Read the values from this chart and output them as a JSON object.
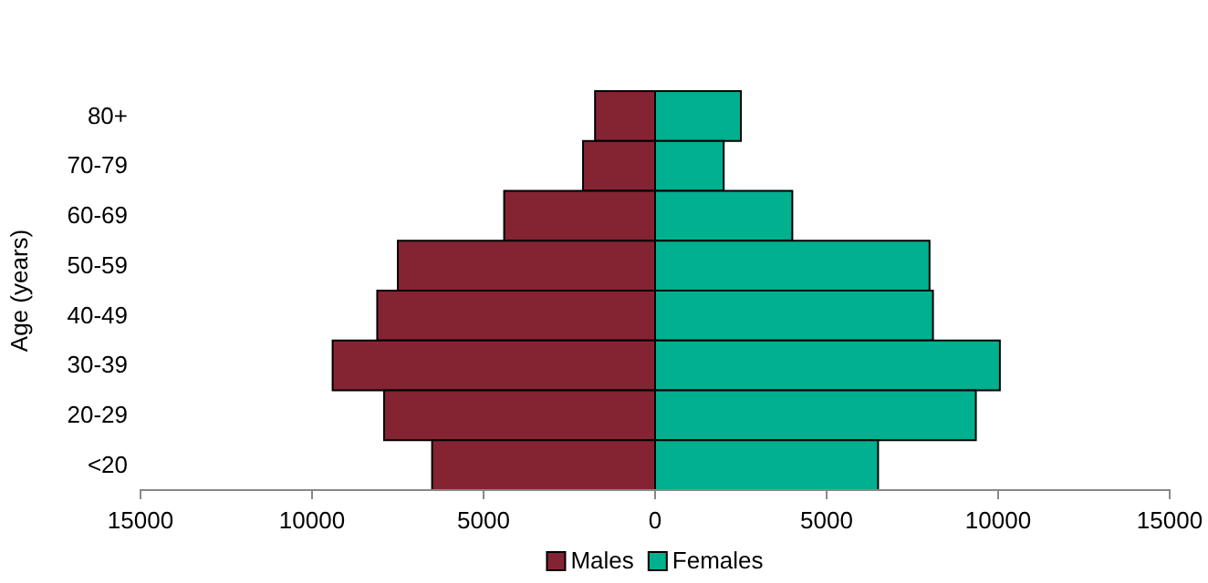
{
  "chart_data": {
    "type": "bar",
    "orientation": "horizontal",
    "stacked": true,
    "ylabel": "Age (years)",
    "categories": [
      "80+",
      "70-79",
      "60-69",
      "50-59",
      "40-49",
      "30-39",
      "20-29",
      "<20"
    ],
    "series": [
      {
        "name": "Males",
        "color": "#842433",
        "values": [
          -1750,
          -2100,
          -4400,
          -7500,
          -8100,
          -9400,
          -7900,
          -6500
        ]
      },
      {
        "name": "Females",
        "color": "#00b08f",
        "values": [
          2500,
          2000,
          4000,
          8000,
          8100,
          10050,
          9350,
          6500
        ]
      }
    ],
    "xlim": [
      -15000,
      15000
    ],
    "xticks": [
      {
        "value": -15000,
        "label": "15000"
      },
      {
        "value": -10000,
        "label": "10000"
      },
      {
        "value": -5000,
        "label": "5000"
      },
      0,
      5000,
      10000,
      15000
    ],
    "grid": false,
    "legend": "bottom"
  }
}
